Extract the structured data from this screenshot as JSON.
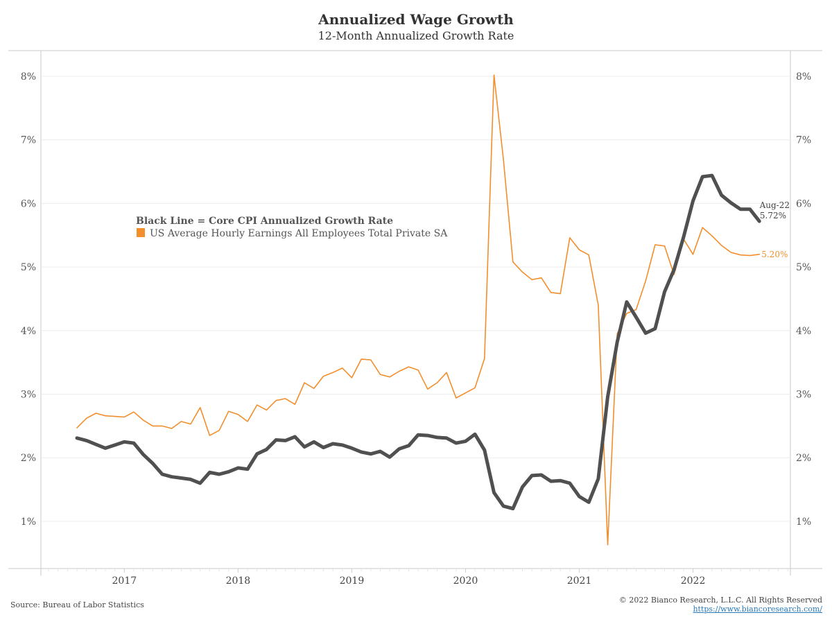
{
  "header": {
    "title": "Annualized Wage Growth",
    "subtitle": "12-Month Annualized Growth Rate"
  },
  "footer": {
    "source": "Source: Bureau of Labor Statistics",
    "copyright": "© 2022 Bianco Research, L.L.C. All Rights Reserved",
    "link": "https://www.biancoresearch.com/"
  },
  "colors": {
    "core_cpi": "#505050",
    "earnings": "#f28e2b",
    "grid": "#ececec",
    "axis": "#c8c8c8"
  },
  "chart_data": {
    "type": "line",
    "title": "Annualized Wage Growth",
    "subtitle": "12-Month Annualized Growth Rate",
    "xlabel": "",
    "ylabel": "",
    "x_start": "Aug-16",
    "x_end": "Aug-22",
    "x_frequency": "monthly",
    "x_tick_labels": [
      "2017",
      "2018",
      "2019",
      "2020",
      "2021",
      "2022"
    ],
    "y_tick_labels": [
      "1%",
      "2%",
      "3%",
      "4%",
      "5%",
      "6%",
      "7%",
      "8%"
    ],
    "ylim": [
      0.25,
      8.75
    ],
    "grid": true,
    "legend": {
      "placement": "center-left",
      "title": "Black Line = Core CPI Annualized Growth Rate",
      "entries": [
        "US Average Hourly Earnings All Employees Total Private SA"
      ]
    },
    "series": [
      {
        "name": "Core CPI Annualized Growth Rate",
        "color": "#505050",
        "values": [
          2.31,
          2.27,
          2.21,
          2.15,
          2.2,
          2.25,
          2.23,
          2.05,
          1.91,
          1.74,
          1.7,
          1.68,
          1.66,
          1.6,
          1.77,
          1.74,
          1.78,
          1.84,
          1.82,
          2.06,
          2.13,
          2.28,
          2.27,
          2.33,
          2.17,
          2.25,
          2.16,
          2.22,
          2.2,
          2.15,
          2.09,
          2.06,
          2.1,
          2.01,
          2.14,
          2.19,
          2.36,
          2.35,
          2.32,
          2.31,
          2.23,
          2.26,
          2.37,
          2.12,
          1.45,
          1.24,
          1.2,
          1.54,
          1.72,
          1.73,
          1.63,
          1.64,
          1.6,
          1.39,
          1.3,
          1.67,
          2.96,
          3.82,
          4.45,
          4.21,
          3.96,
          4.03,
          4.61,
          4.96,
          5.47,
          6.04,
          6.42,
          6.44,
          6.13,
          6.01,
          5.91,
          5.91,
          5.72
        ]
      },
      {
        "name": "US Average Hourly Earnings All Employees Total Private SA",
        "color": "#f28e2b",
        "values": [
          2.47,
          2.62,
          2.7,
          2.66,
          2.65,
          2.64,
          2.72,
          2.59,
          2.5,
          2.5,
          2.46,
          2.57,
          2.53,
          2.79,
          2.35,
          2.43,
          2.73,
          2.68,
          2.57,
          2.83,
          2.75,
          2.9,
          2.93,
          2.84,
          3.18,
          3.09,
          3.28,
          3.34,
          3.41,
          3.26,
          3.55,
          3.54,
          3.31,
          3.27,
          3.36,
          3.43,
          3.38,
          3.08,
          3.18,
          3.34,
          2.94,
          3.02,
          3.1,
          3.56,
          8.02,
          6.69,
          5.08,
          4.92,
          4.8,
          4.83,
          4.6,
          4.58,
          5.46,
          5.27,
          5.19,
          4.4,
          0.63,
          3.95,
          4.27,
          4.33,
          4.78,
          5.35,
          5.33,
          4.88,
          5.44,
          5.2,
          5.62,
          5.49,
          5.34,
          5.23,
          5.19,
          5.18,
          5.2
        ]
      }
    ],
    "annotations": [
      {
        "series": "Core CPI Annualized Growth Rate",
        "text_date": "Aug-22",
        "text_value": "5.72%"
      },
      {
        "series": "US Average Hourly Earnings All Employees Total Private SA",
        "text_value": "5.20%"
      }
    ]
  }
}
